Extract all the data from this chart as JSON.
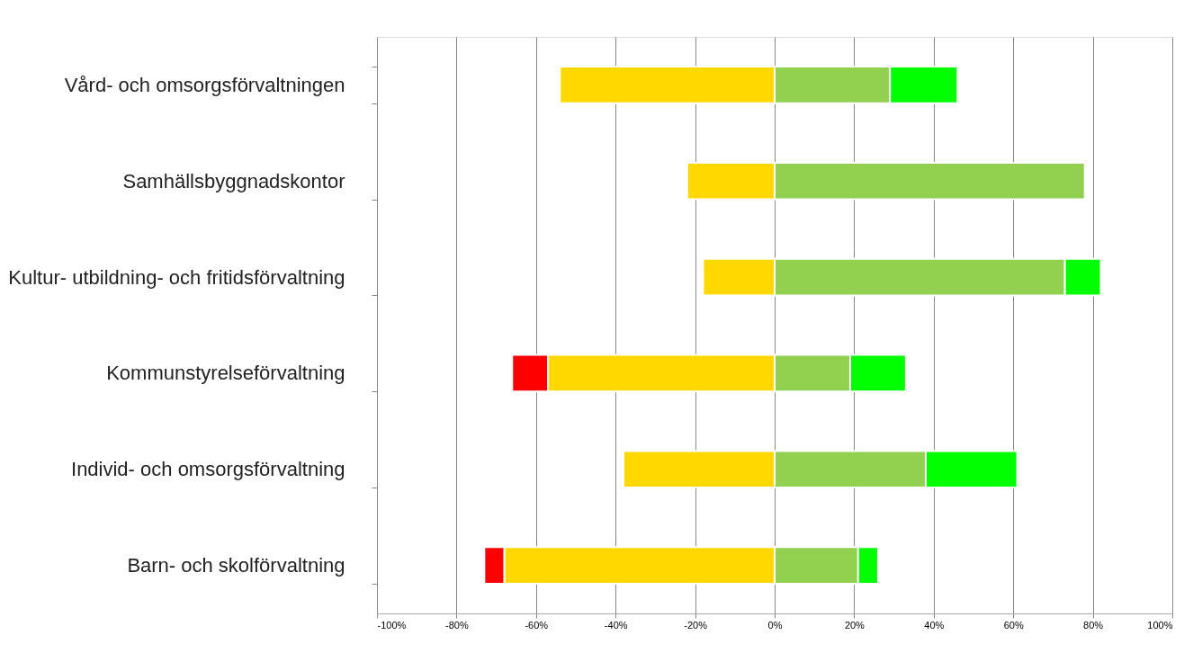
{
  "chart_data": {
    "type": "bar",
    "orientation": "horizontal",
    "stacked": true,
    "categories": [
      "Vård- och omsorgsförvaltningen",
      "Samhällsbyggnadskontor",
      "Kultur- utbildning- och fritidsförvaltning",
      "Kommunstyrelseförvaltning",
      "Individ- och omsorgsförvaltning",
      "Barn- och skolförvaltning"
    ],
    "series": [
      {
        "color": "#ffd800",
        "values": [
          -54,
          -22,
          -18,
          -57,
          -38,
          -68
        ]
      },
      {
        "color": "#ff0000",
        "values": [
          0,
          0,
          0,
          -9,
          0,
          -5
        ]
      },
      {
        "color": "#92d050",
        "values": [
          29,
          78,
          73,
          19,
          38,
          21
        ]
      },
      {
        "color": "#00ff00",
        "values": [
          17,
          0,
          9,
          14,
          23,
          5
        ]
      }
    ],
    "xlim": [
      -100,
      100
    ],
    "xticks": [
      {
        "value": -100,
        "label": "-100%"
      },
      {
        "value": -80,
        "label": "-80%"
      },
      {
        "value": -60,
        "label": "-60%"
      },
      {
        "value": -40,
        "label": "-40%"
      },
      {
        "value": -20,
        "label": "-20%"
      },
      {
        "value": 0,
        "label": "0%"
      },
      {
        "value": 20,
        "label": "20%"
      },
      {
        "value": 40,
        "label": "40%"
      },
      {
        "value": 60,
        "label": "60%"
      },
      {
        "value": 80,
        "label": "80%"
      },
      {
        "value": 100,
        "label": "100%"
      }
    ],
    "grid": "x"
  }
}
